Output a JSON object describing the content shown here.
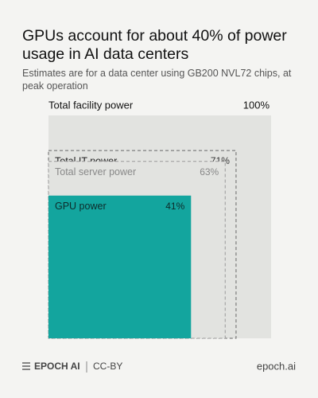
{
  "chart_data": {
    "type": "nested-square",
    "title": "GPUs account for about 40% of power usage in AI data centers",
    "subtitle": "Estimates are for a data center using GB200 NVL72 chips, at peak operation",
    "categories": [
      "Total facility power",
      "Total IT power",
      "Total server power",
      "GPU power"
    ],
    "values": [
      100,
      71,
      63,
      41
    ],
    "value_labels": [
      "100%",
      "71%",
      "63%",
      "41%"
    ],
    "colors": [
      "#e2e3e0",
      "#e2e3e0",
      "#e2e3e0",
      "#13a59e"
    ]
  },
  "footer": {
    "brand": "EPOCH AI",
    "license": "CC-BY",
    "url": "epoch.ai"
  }
}
